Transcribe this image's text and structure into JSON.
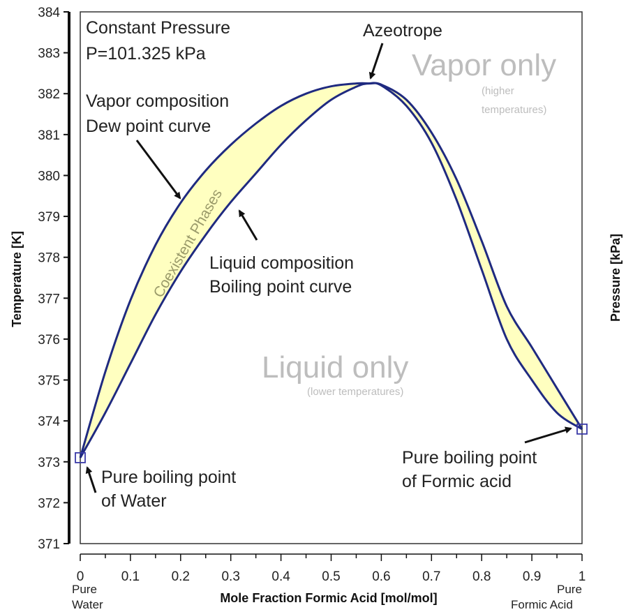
{
  "chart_data": {
    "type": "line",
    "title": "",
    "xlabel": "Mole Fraction Formic Acid [mol/mol]",
    "ylabel": "Temperature [K]",
    "y2label": "Pressure [kPa]",
    "xlim": [
      0,
      1
    ],
    "ylim": [
      371,
      384
    ],
    "x_ticks": [
      "0",
      "0.1",
      "0.2",
      "0.3",
      "0.4",
      "0.5",
      "0.6",
      "0.7",
      "0.8",
      "0.9",
      "1"
    ],
    "y_ticks": [
      "371",
      "372",
      "373",
      "374",
      "375",
      "376",
      "377",
      "378",
      "379",
      "380",
      "381",
      "382",
      "383",
      "384"
    ],
    "x_end_labels": {
      "left": "Pure Water",
      "right": "Pure Formic Acid"
    },
    "grid": false,
    "series": [
      {
        "x": [
          0,
          0.05,
          0.1,
          0.15,
          0.2,
          0.25,
          0.3,
          0.35,
          0.4,
          0.45,
          0.5,
          0.55,
          0.575,
          0.6,
          0.65,
          0.7,
          0.75,
          0.8,
          0.85,
          0.9,
          0.95,
          1
        ],
        "y": [
          373.1,
          375.2,
          376.95,
          378.3,
          379.33,
          380.12,
          380.75,
          381.27,
          381.7,
          382.0,
          382.18,
          382.25,
          382.25,
          382.22,
          381.85,
          381.05,
          379.9,
          378.4,
          376.8,
          375.8,
          374.8,
          373.8
        ]
      },
      {
        "x": [
          0,
          0.05,
          0.1,
          0.15,
          0.2,
          0.25,
          0.3,
          0.35,
          0.4,
          0.45,
          0.5,
          0.55,
          0.575,
          0.6,
          0.65,
          0.7,
          0.75,
          0.8,
          0.85,
          0.9,
          0.95,
          1
        ],
        "y": [
          373.1,
          374.2,
          375.4,
          376.6,
          377.65,
          378.55,
          379.35,
          380.05,
          380.75,
          381.35,
          381.85,
          382.17,
          382.25,
          382.2,
          381.7,
          380.8,
          379.4,
          377.7,
          376.0,
          375.0,
          374.2,
          373.8
        ]
      }
    ],
    "markers": [
      {
        "x": 0,
        "y": 373.1
      },
      {
        "x": 1,
        "y": 373.8
      }
    ],
    "annotations": {
      "constant_pressure": "Constant Pressure",
      "pressure_value": "P=101.325 kPa",
      "azeotrope": "Azeotrope",
      "vapor_only": "Vapor only",
      "vapor_only_sub1": "(higher",
      "vapor_only_sub2": "temperatures)",
      "dew_line1": "Vapor composition",
      "dew_line2": "Dew point curve",
      "coexistent": "Coexistent Phases",
      "liquid_line1": "Liquid composition",
      "liquid_line2": "Boiling point curve",
      "liquid_only": "Liquid only",
      "liquid_only_sub": "(lower temperatures)",
      "water_line1": "Pure boiling point",
      "water_line2": "of Water",
      "formic_line1": "Pure boiling point",
      "formic_line2": "of Formic acid"
    },
    "colors": {
      "curve": "#1f2a80",
      "fill": "#ffffc0",
      "marker": "#3a3aa8"
    }
  }
}
